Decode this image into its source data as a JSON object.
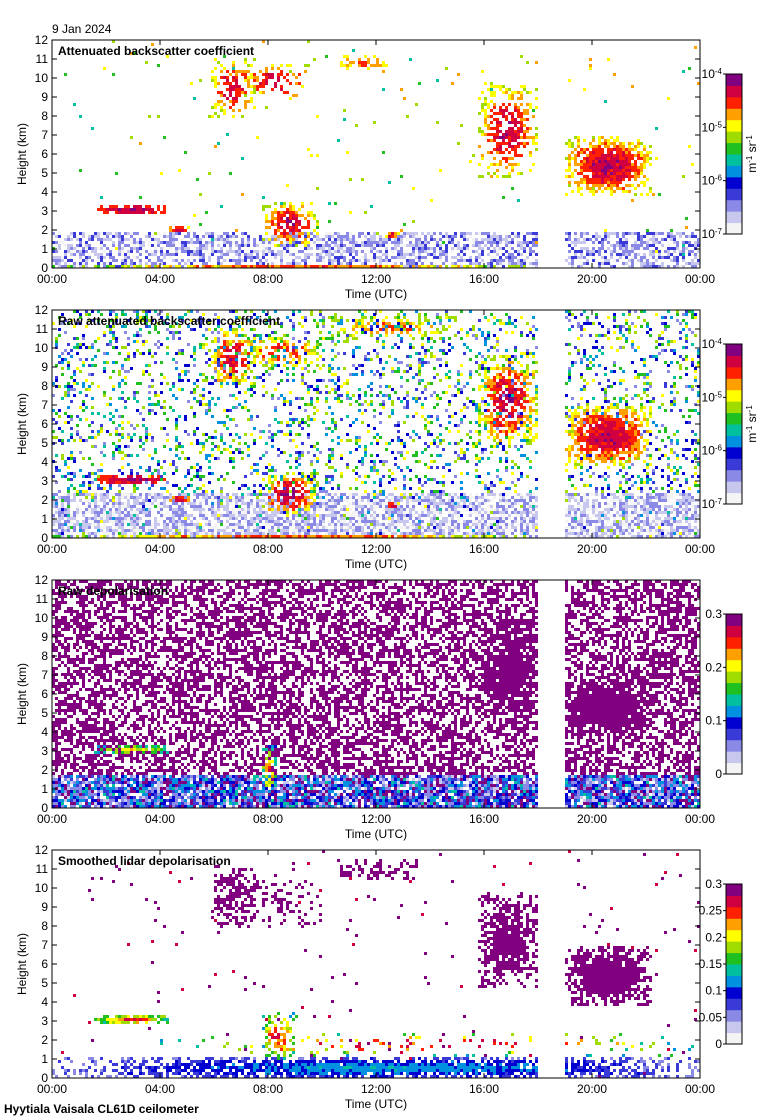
{
  "date_label": "9 Jan 2024",
  "footer_label": "Hyytiala Vaisala CL61D ceilometer",
  "colormap": [
    "#f4f4f4",
    "#c8c8ee",
    "#8a8ae6",
    "#3a3ad8",
    "#0000d0",
    "#0090e0",
    "#00c0a0",
    "#20c020",
    "#a0dc00",
    "#ffff00",
    "#ffa000",
    "#ff2000",
    "#d00040",
    "#800080"
  ],
  "chart_data": [
    {
      "type": "heatmap",
      "title": "Attenuated backscatter coefficient",
      "xlabel": "Time (UTC)",
      "ylabel": "Height (km)",
      "xticks": [
        "00:00",
        "04:00",
        "08:00",
        "12:00",
        "16:00",
        "20:00",
        "00:00"
      ],
      "yticks": [
        "0",
        "1",
        "2",
        "3",
        "4",
        "5",
        "6",
        "7",
        "8",
        "9",
        "10",
        "11",
        "12"
      ],
      "xlim": [
        0,
        24
      ],
      "ylim": [
        0,
        12
      ],
      "data_gap_hours": [
        18.0,
        18.9
      ],
      "colorbar": {
        "scale": "log",
        "ticks": [
          "10^-7",
          "10^-6",
          "10^-5",
          "10^-4"
        ],
        "ticks_display": [
          "10-7",
          "10-6",
          "10-5",
          "10-4"
        ],
        "units_display": "m-1 sr-1"
      }
    },
    {
      "type": "heatmap",
      "title": "Raw attenuated backscatter coefficient",
      "xlabel": "Time (UTC)",
      "ylabel": "Height (km)",
      "xticks": [
        "00:00",
        "04:00",
        "08:00",
        "12:00",
        "16:00",
        "20:00",
        "00:00"
      ],
      "yticks": [
        "0",
        "1",
        "2",
        "3",
        "4",
        "5",
        "6",
        "7",
        "8",
        "9",
        "10",
        "11",
        "12"
      ],
      "xlim": [
        0,
        24
      ],
      "ylim": [
        0,
        12
      ],
      "data_gap_hours": [
        18.0,
        18.9
      ],
      "colorbar": {
        "scale": "log",
        "ticks": [
          "10^-7",
          "10^-6",
          "10^-5",
          "10^-4"
        ],
        "ticks_display": [
          "10-7",
          "10-6",
          "10-5",
          "10-4"
        ],
        "units_display": "m-1 sr-1"
      }
    },
    {
      "type": "heatmap",
      "title": "Raw depolarisation",
      "xlabel": "Time (UTC)",
      "ylabel": "Height (km)",
      "xticks": [
        "00:00",
        "04:00",
        "08:00",
        "12:00",
        "16:00",
        "20:00",
        "00:00"
      ],
      "yticks": [
        "0",
        "1",
        "2",
        "3",
        "4",
        "5",
        "6",
        "7",
        "8",
        "9",
        "10",
        "11",
        "12"
      ],
      "xlim": [
        0,
        24
      ],
      "ylim": [
        0,
        12
      ],
      "data_gap_hours": [
        18.0,
        18.9
      ],
      "colorbar": {
        "scale": "linear",
        "ticks": [
          "0",
          "0.1",
          "0.2",
          "0.3"
        ],
        "range": [
          0,
          0.3
        ]
      }
    },
    {
      "type": "heatmap",
      "title": "Smoothed lidar depolarisation",
      "xlabel": "Time (UTC)",
      "ylabel": "Height (km)",
      "xticks": [
        "00:00",
        "04:00",
        "08:00",
        "12:00",
        "16:00",
        "20:00",
        "00:00"
      ],
      "yticks": [
        "0",
        "1",
        "2",
        "3",
        "4",
        "5",
        "6",
        "7",
        "8",
        "9",
        "10",
        "11",
        "12"
      ],
      "xlim": [
        0,
        24
      ],
      "ylim": [
        0,
        12
      ],
      "data_gap_hours": [
        18.0,
        18.9
      ],
      "colorbar": {
        "scale": "linear",
        "ticks": [
          "0",
          "0.05",
          "0.1",
          "0.15",
          "0.2",
          "0.25",
          "0.3"
        ],
        "range": [
          0,
          0.3
        ]
      }
    }
  ]
}
